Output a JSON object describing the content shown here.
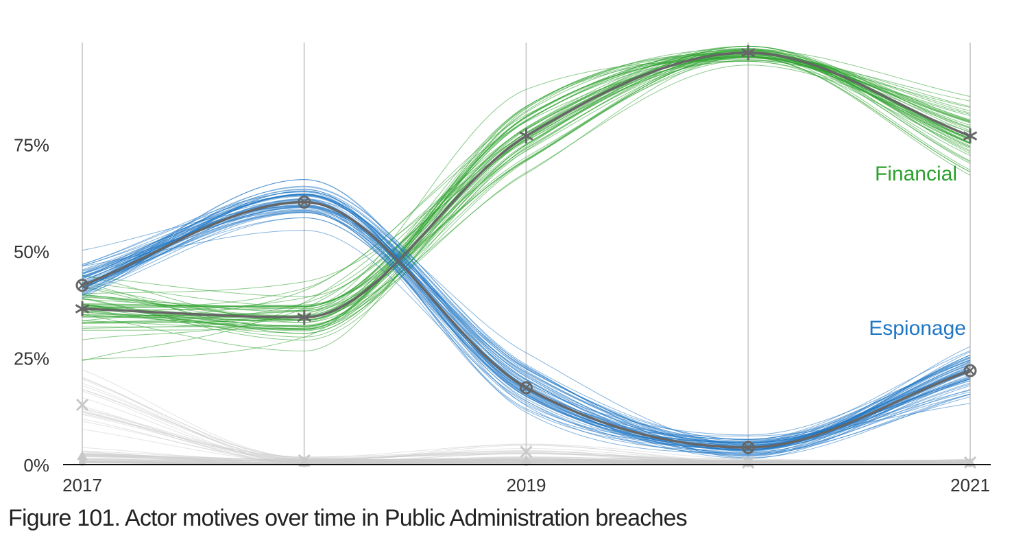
{
  "figure_caption": "Figure 101. Actor motives over time in Public Administration breaches",
  "chart_data": {
    "type": "line",
    "title": "",
    "xlabel": "",
    "ylabel": "",
    "x": [
      2017,
      2018,
      2019,
      2020,
      2021
    ],
    "x_tick_labels": [
      "2017",
      "",
      "2019",
      "",
      "2021"
    ],
    "y_tick_labels": [
      "0%",
      "25%",
      "50%",
      "75%"
    ],
    "y_ticks": [
      0,
      0.25,
      0.5,
      0.75
    ],
    "ylim": [
      0,
      1
    ],
    "grid": "vertical",
    "uncertainty": "many faint simulated lines drawn around each median line",
    "series": [
      {
        "name": "Financial",
        "color": "#2ca02c",
        "marker": "asterisk",
        "values": [
          0.365,
          0.345,
          0.77,
          0.965,
          0.77
        ]
      },
      {
        "name": "Espionage",
        "color": "#1f77c4",
        "marker": "circle-x",
        "values": [
          0.42,
          0.615,
          0.18,
          0.04,
          0.22
        ]
      },
      {
        "name": "",
        "color": "#cccccc",
        "marker": "x",
        "values": [
          0.14,
          0.01,
          0.03,
          0.005,
          0.005
        ]
      },
      {
        "name": "",
        "color": "#cccccc",
        "marker": "triangle",
        "values": [
          0.02,
          0.005,
          0.01,
          0.005,
          0.005
        ]
      },
      {
        "name": "",
        "color": "#cccccc",
        "marker": "dot",
        "values": [
          0.005,
          0.002,
          0.005,
          0.002,
          0.002
        ]
      }
    ],
    "median_line_color": "#666666",
    "axis_color": "#111111",
    "grid_color": "#d0d0d0"
  }
}
